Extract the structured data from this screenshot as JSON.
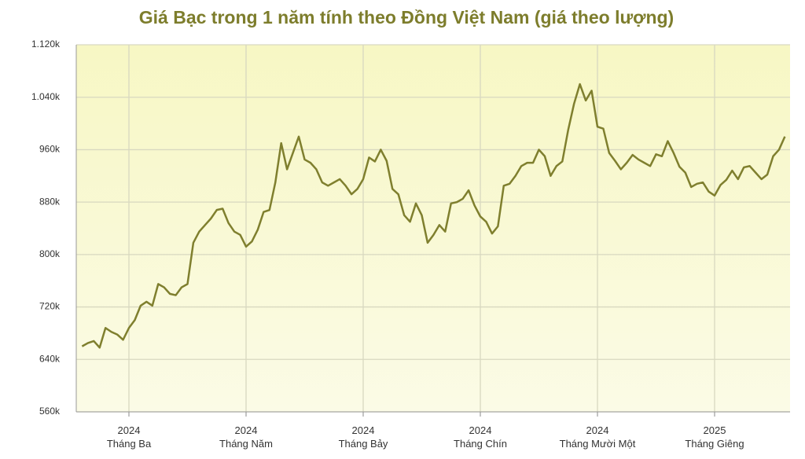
{
  "chart_data": {
    "type": "line",
    "title": "Giá Bạc trong 1 năm tính theo Đồng Việt Nam (giá theo lượng)",
    "categories": [
      null,
      null,
      null,
      null,
      null,
      null,
      null,
      null,
      "2024\nTháng Ba",
      null,
      null,
      null,
      null,
      null,
      null,
      null,
      null,
      null,
      null,
      null,
      null,
      null,
      null,
      null,
      null,
      null,
      null,
      null,
      "2024\nTháng Năm",
      null,
      null,
      null,
      null,
      null,
      null,
      null,
      null,
      null,
      null,
      null,
      null,
      null,
      null,
      null,
      null,
      null,
      null,
      null,
      "2024\nTháng Bảy",
      null,
      null,
      null,
      null,
      null,
      null,
      null,
      null,
      null,
      null,
      null,
      null,
      null,
      null,
      null,
      null,
      null,
      null,
      null,
      "2024\nTháng Chín",
      null,
      null,
      null,
      null,
      null,
      null,
      null,
      null,
      null,
      null,
      null,
      null,
      null,
      null,
      null,
      null,
      null,
      null,
      null,
      "2024\nTháng Mười Một",
      null,
      null,
      null,
      null,
      null,
      null,
      null,
      null,
      null,
      null,
      null,
      null,
      null,
      null,
      null,
      null,
      null,
      null,
      null,
      "2025\nTháng Giêng",
      null,
      null,
      null,
      null,
      null,
      null,
      null,
      null,
      null,
      null,
      null,
      null
    ],
    "series": [
      {
        "name": "Giá Bạc",
        "color": "#7f7f2e",
        "values": [
          660,
          665,
          668,
          658,
          688,
          682,
          678,
          670,
          688,
          700,
          722,
          728,
          722,
          755,
          750,
          740,
          738,
          750,
          755,
          818,
          835,
          845,
          855,
          868,
          870,
          848,
          835,
          830,
          812,
          820,
          838,
          865,
          868,
          910,
          970,
          930,
          955,
          980,
          945,
          940,
          930,
          910,
          905,
          910,
          915,
          905,
          892,
          900,
          915,
          948,
          942,
          960,
          943,
          900,
          892,
          860,
          850,
          878,
          860,
          818,
          830,
          845,
          835,
          878,
          880,
          885,
          898,
          875,
          858,
          850,
          832,
          843,
          905,
          908,
          920,
          935,
          940,
          940,
          960,
          950,
          920,
          935,
          942,
          990,
          1030,
          1060,
          1035,
          1050,
          995,
          992,
          955,
          943,
          930,
          940,
          952,
          945,
          940,
          935,
          953,
          950,
          973,
          955,
          934,
          925,
          903,
          908,
          910,
          896,
          890,
          906,
          914,
          928,
          915,
          933,
          935,
          925,
          915,
          922,
          950,
          960,
          980
        ]
      }
    ],
    "ylim": [
      560,
      1120
    ],
    "yticks": [
      {
        "value": 560,
        "label": "560k"
      },
      {
        "value": 640,
        "label": "640k"
      },
      {
        "value": 720,
        "label": "720k"
      },
      {
        "value": 800,
        "label": "800k"
      },
      {
        "value": 880,
        "label": "880k"
      },
      {
        "value": 960,
        "label": "960k"
      },
      {
        "value": 1040,
        "label": "1.040k"
      },
      {
        "value": 1120,
        "label": "1.120k"
      }
    ],
    "grid": true
  }
}
